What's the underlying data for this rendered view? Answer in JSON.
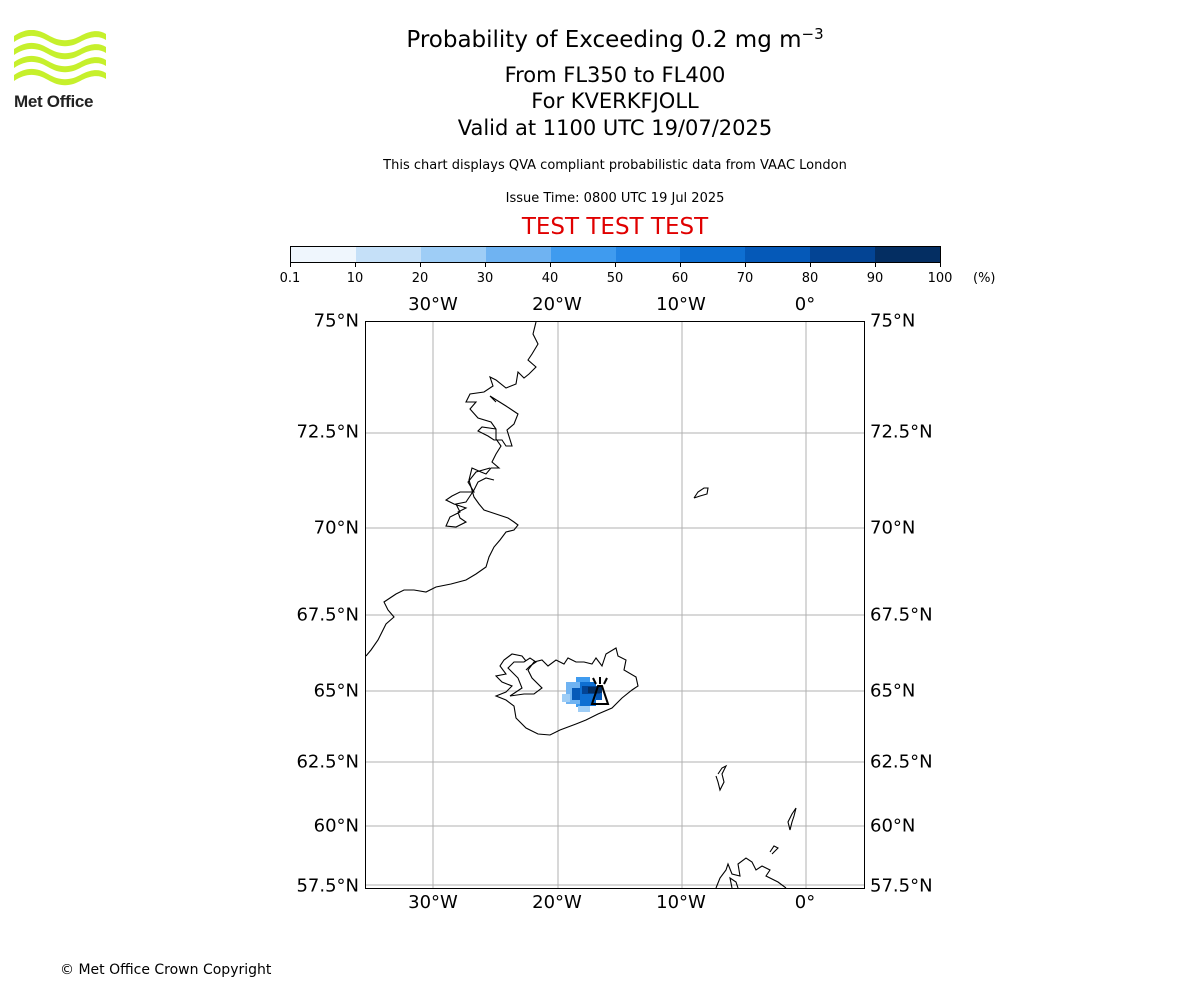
{
  "logo": {
    "text": "Met Office",
    "icon": "met-office-wave-logo",
    "color": "#c6f02c"
  },
  "title": {
    "main_prefix": "Probability of Exceeding 0.2 mg m",
    "main_sup": "−3",
    "levels": "From FL350 to FL400",
    "volcano": "For KVERKFJOLL",
    "valid": "Valid at 1100 UTC 19/07/2025"
  },
  "note": "This chart displays QVA compliant probabilistic data from VAAC London",
  "issue_time": "Issue Time: 0800 UTC 19 Jul 2025",
  "test_banner": "TEST TEST TEST",
  "colorbar": {
    "ticks": [
      "0.1",
      "10",
      "20",
      "30",
      "40",
      "50",
      "60",
      "70",
      "80",
      "90",
      "100"
    ],
    "colors": [
      "#eff6fd",
      "#c5e0f8",
      "#9ecdf6",
      "#6fb3f2",
      "#3f9bef",
      "#2284e4",
      "#0e6fd2",
      "#0559b8",
      "#034494",
      "#042e62"
    ],
    "unit": "(%)"
  },
  "map": {
    "lon_labels": [
      "30°W",
      "20°W",
      "10°W",
      "0°"
    ],
    "lat_labels": [
      "75°N",
      "72.5°N",
      "70°N",
      "67.5°N",
      "65°N",
      "62.5°N",
      "60°N",
      "57.5°N"
    ],
    "volcano_marker": "volcano-icon"
  },
  "copyright": "© Met Office Crown Copyright"
}
